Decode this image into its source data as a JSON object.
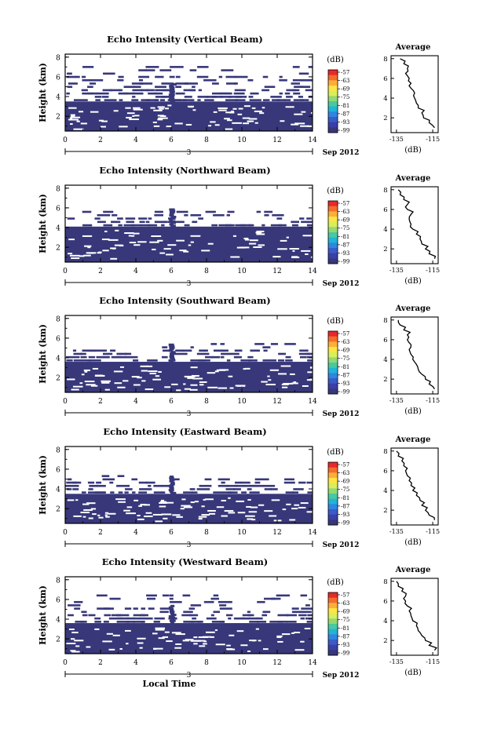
{
  "chart_data": {
    "type": "heatmap",
    "shared": {
      "xlabel": "Local Time",
      "x_ticks": [
        "0",
        "2",
        "4",
        "6",
        "8",
        "10",
        "12",
        "14"
      ],
      "xlim": [
        0,
        14
      ],
      "date_label": "3",
      "month_label": "Sep 2012",
      "ylabel": "Height (km)",
      "y_ticks": [
        "2",
        "4",
        "6",
        "8"
      ],
      "ylim": [
        0.5,
        8.3
      ],
      "colorbar_unit": "(dB)",
      "colorbar_ticks": [
        "-57",
        "-63",
        "-69",
        "-75",
        "-81",
        "-87",
        "-93",
        "-99"
      ],
      "colorbar_colors": [
        "#e8282a",
        "#f46d2a",
        "#fcae3a",
        "#fde546",
        "#d8ee5a",
        "#94d873",
        "#48c9a0",
        "#22b4d6",
        "#2f86e0",
        "#3b5bc6",
        "#3b3fa8",
        "#37377a"
      ],
      "avg_title": "Average",
      "avg_xlabel": "(dB)",
      "avg_x_ticks": [
        "-135",
        "-115"
      ],
      "avg_xlim": [
        -138,
        -112
      ],
      "avg_y_ticks": [
        "2",
        "4",
        "6",
        "8"
      ],
      "fill_color": "#37377a"
    },
    "panels": [
      {
        "title": "Echo Intensity (Vertical Beam)",
        "base_top": 3.5,
        "scatter_top": 7.2,
        "average_profile": [
          [
            1.0,
            -114
          ],
          [
            1.5,
            -117
          ],
          [
            2.0,
            -120
          ],
          [
            2.5,
            -121
          ],
          [
            3.0,
            -123
          ],
          [
            3.5,
            -124
          ],
          [
            4.0,
            -125
          ],
          [
            4.5,
            -125
          ],
          [
            5.0,
            -127
          ],
          [
            5.5,
            -127
          ],
          [
            6.0,
            -128
          ],
          [
            6.5,
            -130
          ],
          [
            7.0,
            -129
          ],
          [
            7.5,
            -131
          ],
          [
            8.0,
            -133
          ]
        ]
      },
      {
        "title": "Echo Intensity (Northward Beam)",
        "base_top": 4.1,
        "scatter_top": 5.8,
        "average_profile": [
          [
            1.0,
            -114
          ],
          [
            1.5,
            -117
          ],
          [
            2.0,
            -119
          ],
          [
            2.5,
            -121
          ],
          [
            3.0,
            -122
          ],
          [
            3.5,
            -124
          ],
          [
            4.0,
            -126
          ],
          [
            4.5,
            -127
          ],
          [
            5.0,
            -128
          ],
          [
            5.5,
            -127
          ],
          [
            6.0,
            -129
          ],
          [
            6.5,
            -129
          ],
          [
            7.0,
            -131
          ],
          [
            7.5,
            -133
          ],
          [
            8.0,
            -134
          ]
        ]
      },
      {
        "title": "Echo Intensity (Southward Beam)",
        "base_top": 3.6,
        "scatter_top": 5.6,
        "average_profile": [
          [
            1.0,
            -114
          ],
          [
            1.5,
            -117
          ],
          [
            2.0,
            -119
          ],
          [
            2.5,
            -121
          ],
          [
            3.0,
            -123
          ],
          [
            3.5,
            -124
          ],
          [
            4.0,
            -126
          ],
          [
            4.5,
            -127
          ],
          [
            5.0,
            -128
          ],
          [
            5.5,
            -127
          ],
          [
            6.0,
            -129
          ],
          [
            6.5,
            -129
          ],
          [
            7.0,
            -131
          ],
          [
            7.5,
            -133
          ],
          [
            8.0,
            -134
          ]
        ]
      },
      {
        "title": "Echo Intensity (Eastward Beam)",
        "base_top": 3.5,
        "scatter_top": 5.5,
        "average_profile": [
          [
            1.0,
            -114
          ],
          [
            1.5,
            -117
          ],
          [
            2.0,
            -119
          ],
          [
            2.5,
            -121
          ],
          [
            3.0,
            -122
          ],
          [
            3.5,
            -124
          ],
          [
            4.0,
            -126
          ],
          [
            4.5,
            -127
          ],
          [
            5.0,
            -128
          ],
          [
            5.5,
            -129
          ],
          [
            6.0,
            -130
          ],
          [
            6.5,
            -131
          ],
          [
            7.0,
            -132
          ],
          [
            7.5,
            -134
          ],
          [
            8.0,
            -135
          ]
        ]
      },
      {
        "title": "Echo Intensity (Westward Beam)",
        "base_top": 3.6,
        "scatter_top": 6.6,
        "average_profile": [
          [
            1.0,
            -114
          ],
          [
            1.5,
            -117
          ],
          [
            2.0,
            -119
          ],
          [
            2.5,
            -121
          ],
          [
            3.0,
            -123
          ],
          [
            3.5,
            -124
          ],
          [
            4.0,
            -126
          ],
          [
            4.5,
            -127
          ],
          [
            5.0,
            -128
          ],
          [
            5.5,
            -129
          ],
          [
            6.0,
            -130
          ],
          [
            6.5,
            -130
          ],
          [
            7.0,
            -132
          ],
          [
            7.5,
            -134
          ],
          [
            8.0,
            -135
          ]
        ]
      }
    ]
  }
}
